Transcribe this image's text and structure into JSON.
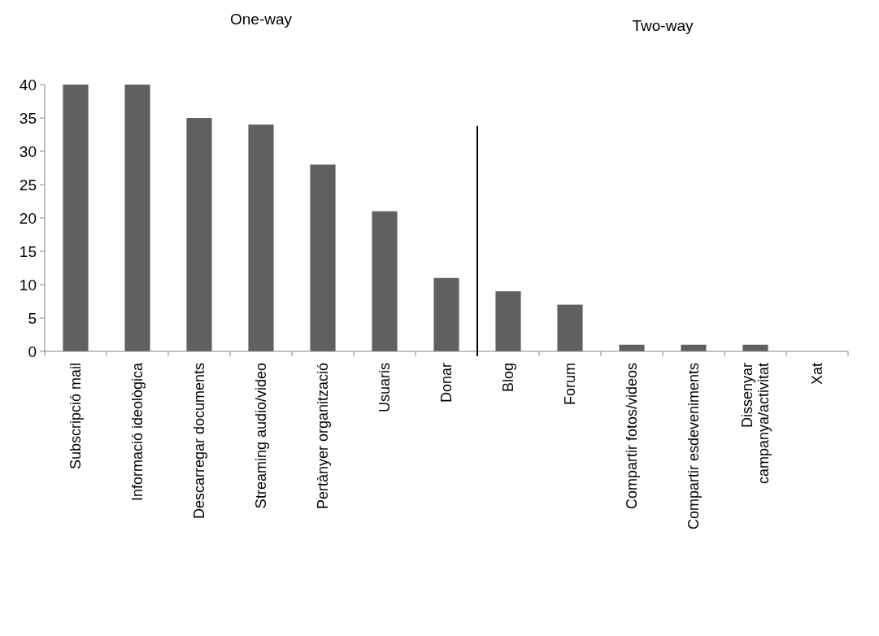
{
  "chart_data": {
    "type": "bar",
    "categories": [
      "Subscripció mail",
      "Informació ideològica",
      "Descarregar documents",
      "Streaming audio/video",
      "Pertànyer organització",
      "Usuaris",
      "Donar",
      "Blog",
      "Forum",
      "Compartir fotos/videos",
      "Compartir esdeveniments",
      "Dissenyar campanya/activitat",
      "Xat"
    ],
    "values": [
      40,
      40,
      35,
      34,
      28,
      21,
      11,
      9,
      7,
      1,
      1,
      1,
      0
    ],
    "color": "#606060",
    "ylim": [
      0,
      40
    ],
    "yticks": [
      0,
      5,
      10,
      15,
      20,
      25,
      30,
      35,
      40
    ],
    "annotations": [
      "One-way",
      "Two-way"
    ],
    "grid": false
  }
}
